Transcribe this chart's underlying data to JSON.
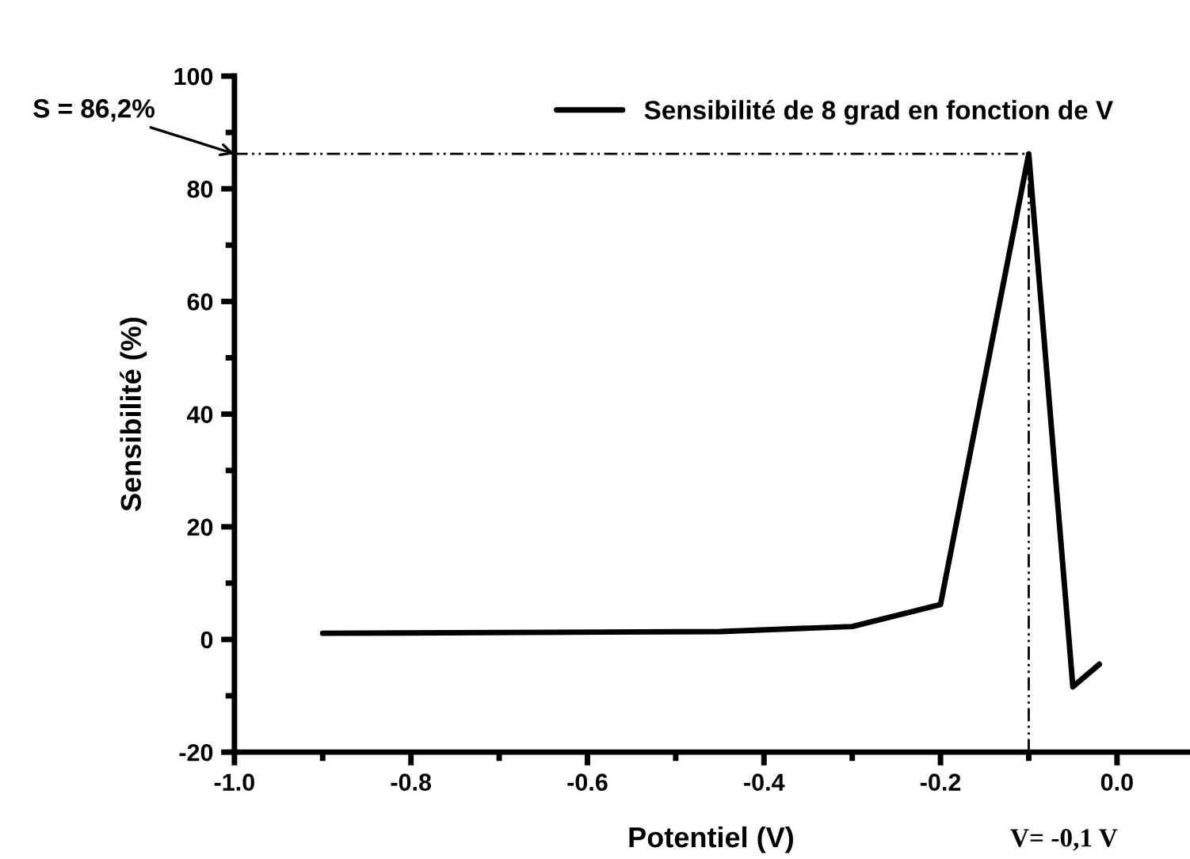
{
  "chart_data": {
    "type": "line",
    "xlabel": "Potentiel (V)",
    "ylabel": "Sensibilité (%)",
    "x": [
      -0.9,
      -0.45,
      -0.3,
      -0.2,
      -0.1,
      -0.05,
      -0.02
    ],
    "series": [
      {
        "name": "Sensibilité de 8 grad en fonction de V",
        "color": "#000000",
        "values": [
          1.1,
          1.4,
          2.3,
          6.2,
          86.2,
          -8.4,
          -4.4
        ]
      }
    ],
    "xlim": [
      -1.0,
      0.08
    ],
    "xticks": [
      {
        "value": -1.0,
        "label": "-1.0"
      },
      {
        "value": -0.8,
        "label": "-0.8"
      },
      {
        "value": -0.6,
        "label": "-0.6"
      },
      {
        "value": -0.4,
        "label": "-0.4"
      },
      {
        "value": -0.2,
        "label": "-0.2"
      },
      {
        "value": 0.0,
        "label": "0.0"
      }
    ],
    "ylim": [
      -20,
      100
    ],
    "yticks": [
      -20,
      0,
      20,
      40,
      60,
      80,
      100
    ],
    "ref_lines": [
      {
        "axis": "x",
        "value": -0.1,
        "label": "V= -0,1 V",
        "color": "#000000",
        "line_style": "dotted"
      },
      {
        "axis": "y",
        "value": 86.2,
        "label": "S = 86,2%",
        "color": "#000000",
        "line_style": "dotted"
      }
    ],
    "legend": "top",
    "grid": false,
    "marker": "none",
    "line_style": "solid"
  }
}
